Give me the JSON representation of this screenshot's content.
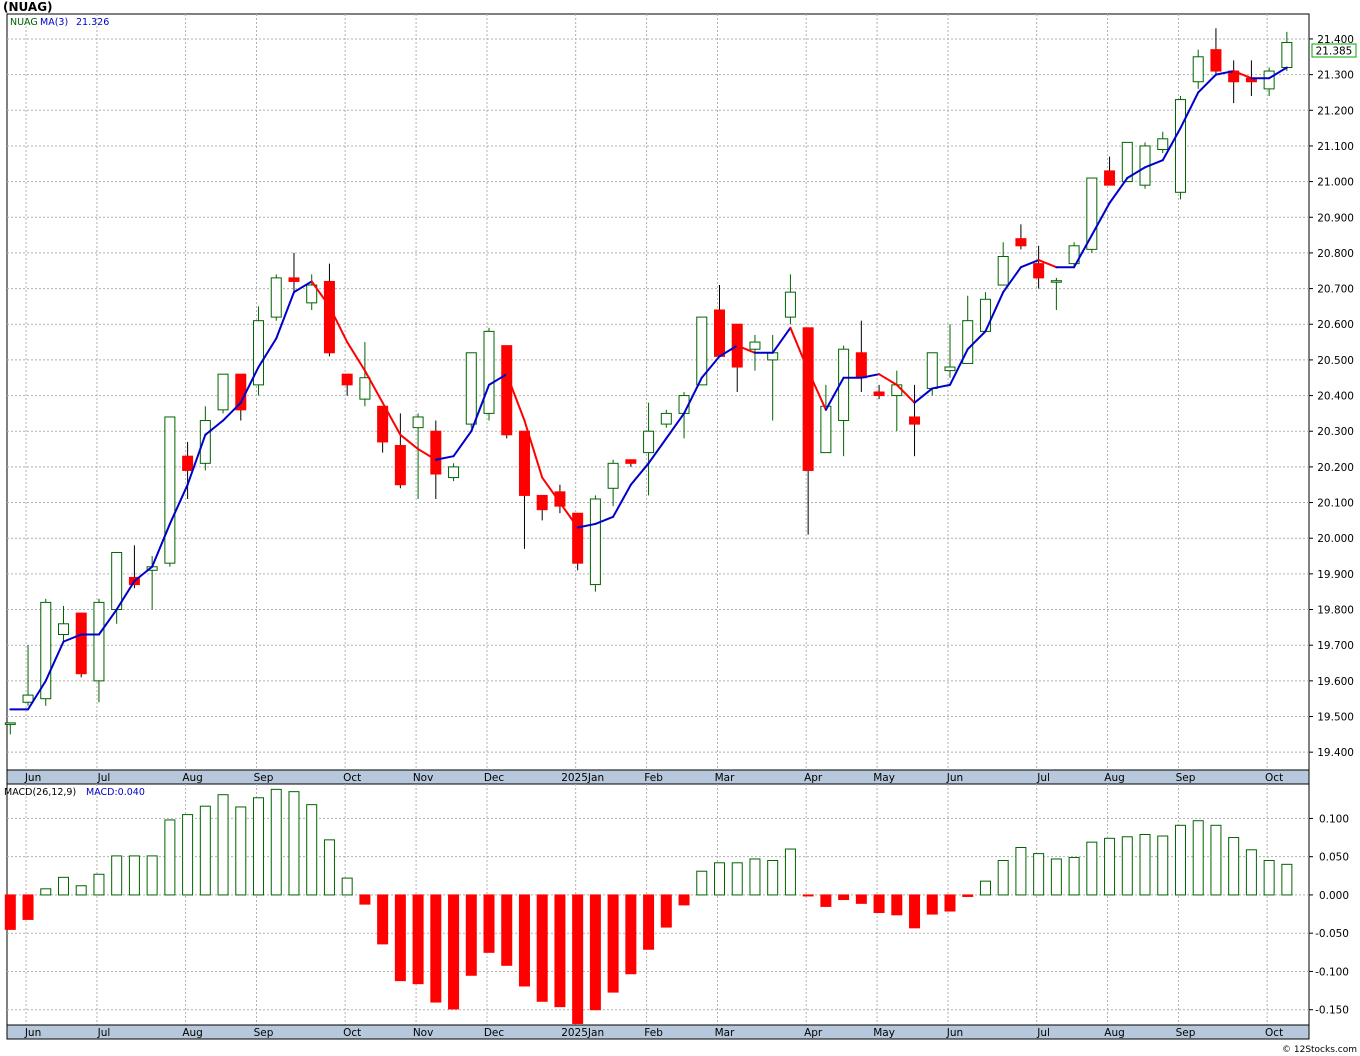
{
  "title": "(NUAG)",
  "footer": "© 12Stocks.com",
  "legend": {
    "price_symbol": "NUAG",
    "ma_label": "MA(3)",
    "ma_value": "21.326",
    "macd_label": "MACD(26,12,9)",
    "macd_value": "MACD:0.040"
  },
  "last_price_label": "21.385",
  "colors": {
    "up_candle": "#006400",
    "down_candle": "#ff0000",
    "ma_up": "#0000cc",
    "ma_down": "#ff0000",
    "grid": "#b0b0b0",
    "axis_band": "#b8c8dc",
    "price_flag": "#00aa00"
  },
  "chart_data": [
    {
      "type": "candlestick",
      "name": "price",
      "ylim": [
        19.35,
        21.47
      ],
      "y_ticks": [
        19.4,
        19.5,
        19.6,
        19.7,
        19.8,
        19.9,
        20.0,
        20.1,
        20.2,
        20.3,
        20.4,
        20.5,
        20.6,
        20.7,
        20.8,
        20.9,
        21.0,
        21.1,
        21.2,
        21.3,
        21.4
      ],
      "y_tick_labels": [
        "19.400",
        "19.500",
        "19.600",
        "19.700",
        "19.800",
        "19.900",
        "20.000",
        "20.100",
        "20.200",
        "20.300",
        "20.400",
        "20.500",
        "20.600",
        "20.700",
        "20.800",
        "20.900",
        "21.000",
        "21.100",
        "21.200",
        "21.300",
        "21.400"
      ],
      "x_labels": [
        {
          "label": "Jun",
          "index": 1
        },
        {
          "label": "Jul",
          "index": 5
        },
        {
          "label": "Aug",
          "index": 10
        },
        {
          "label": "Sep",
          "index": 14
        },
        {
          "label": "Oct",
          "index": 19
        },
        {
          "label": "Nov",
          "index": 23
        },
        {
          "label": "Dec",
          "index": 27
        },
        {
          "label": "2025Jan",
          "index": 32
        },
        {
          "label": "Feb",
          "index": 36
        },
        {
          "label": "Mar",
          "index": 40
        },
        {
          "label": "Apr",
          "index": 45
        },
        {
          "label": "May",
          "index": 49
        },
        {
          "label": "Jun",
          "index": 53
        },
        {
          "label": "Jul",
          "index": 58
        },
        {
          "label": "Aug",
          "index": 62
        },
        {
          "label": "Sep",
          "index": 66
        },
        {
          "label": "Oct",
          "index": 71
        }
      ],
      "candles": [
        [
          19.48,
          19.48,
          19.45,
          19.48
        ],
        [
          19.54,
          19.7,
          19.53,
          19.56
        ],
        [
          19.55,
          19.83,
          19.53,
          19.82
        ],
        [
          19.73,
          19.81,
          19.71,
          19.76
        ],
        [
          19.79,
          19.79,
          19.61,
          19.62
        ],
        [
          19.6,
          19.83,
          19.54,
          19.82
        ],
        [
          19.8,
          19.96,
          19.76,
          19.96
        ],
        [
          19.89,
          19.98,
          19.86,
          19.87
        ],
        [
          19.91,
          19.95,
          19.8,
          19.92
        ],
        [
          19.93,
          20.34,
          19.92,
          20.34
        ],
        [
          20.23,
          20.27,
          20.11,
          20.19
        ],
        [
          20.21,
          20.37,
          20.19,
          20.33
        ],
        [
          20.36,
          20.46,
          20.35,
          20.46
        ],
        [
          20.46,
          20.46,
          20.33,
          20.36
        ],
        [
          20.43,
          20.65,
          20.4,
          20.61
        ],
        [
          20.62,
          20.74,
          20.61,
          20.73
        ],
        [
          20.73,
          20.8,
          20.69,
          20.72
        ],
        [
          20.66,
          20.74,
          20.64,
          20.71
        ],
        [
          20.72,
          20.77,
          20.51,
          20.52
        ],
        [
          20.46,
          20.46,
          20.4,
          20.43
        ],
        [
          20.39,
          20.55,
          20.37,
          20.45
        ],
        [
          20.37,
          20.37,
          20.24,
          20.27
        ],
        [
          20.26,
          20.35,
          20.14,
          20.15
        ],
        [
          20.31,
          20.35,
          20.11,
          20.34
        ],
        [
          20.3,
          20.33,
          20.11,
          20.18
        ],
        [
          20.17,
          20.21,
          20.16,
          20.2
        ],
        [
          20.32,
          20.52,
          20.31,
          20.52
        ],
        [
          20.35,
          20.59,
          20.33,
          20.58
        ],
        [
          20.54,
          20.54,
          20.28,
          20.29
        ],
        [
          20.3,
          20.3,
          19.97,
          20.12
        ],
        [
          20.12,
          20.12,
          20.05,
          20.08
        ],
        [
          20.13,
          20.15,
          20.07,
          20.09
        ],
        [
          20.07,
          20.07,
          19.91,
          19.93
        ],
        [
          19.87,
          20.12,
          19.85,
          20.11
        ],
        [
          20.14,
          20.22,
          20.09,
          20.21
        ],
        [
          20.22,
          20.22,
          20.2,
          20.21
        ],
        [
          20.24,
          20.38,
          20.12,
          20.3
        ],
        [
          20.32,
          20.36,
          20.31,
          20.35
        ],
        [
          20.35,
          20.41,
          20.28,
          20.4
        ],
        [
          20.43,
          20.62,
          20.43,
          20.62
        ],
        [
          20.64,
          20.71,
          20.51,
          20.51
        ],
        [
          20.6,
          20.6,
          20.41,
          20.48
        ],
        [
          20.53,
          20.57,
          20.47,
          20.55
        ],
        [
          20.5,
          20.57,
          20.33,
          20.52
        ],
        [
          20.62,
          20.74,
          20.6,
          20.69
        ],
        [
          20.59,
          20.59,
          20.01,
          20.19
        ],
        [
          20.24,
          20.43,
          20.24,
          20.37
        ],
        [
          20.33,
          20.54,
          20.23,
          20.53
        ],
        [
          20.52,
          20.61,
          20.41,
          20.45
        ],
        [
          20.41,
          20.43,
          20.39,
          20.4
        ],
        [
          20.4,
          20.47,
          20.3,
          20.43
        ],
        [
          20.34,
          20.43,
          20.23,
          20.32
        ],
        [
          20.42,
          20.52,
          20.4,
          20.52
        ],
        [
          20.47,
          20.6,
          20.45,
          20.48
        ],
        [
          20.49,
          20.68,
          20.49,
          20.61
        ],
        [
          20.58,
          20.69,
          20.58,
          20.67
        ],
        [
          20.71,
          20.83,
          20.71,
          20.79
        ],
        [
          20.84,
          20.88,
          20.81,
          20.82
        ],
        [
          20.77,
          20.82,
          20.7,
          20.73
        ],
        [
          20.72,
          20.73,
          20.64,
          20.72
        ],
        [
          20.77,
          20.83,
          20.76,
          20.82
        ],
        [
          20.81,
          21.01,
          20.8,
          21.01
        ],
        [
          21.03,
          21.07,
          20.99,
          20.99
        ],
        [
          21.0,
          21.11,
          21.0,
          21.11
        ],
        [
          20.99,
          21.11,
          20.98,
          21.1
        ],
        [
          21.09,
          21.14,
          21.08,
          21.12
        ],
        [
          20.97,
          21.24,
          20.95,
          21.23
        ],
        [
          21.28,
          21.37,
          21.26,
          21.35
        ],
        [
          21.37,
          21.43,
          21.3,
          21.31
        ],
        [
          21.31,
          21.34,
          21.22,
          21.28
        ],
        [
          21.29,
          21.34,
          21.24,
          21.28
        ],
        [
          21.26,
          21.32,
          21.24,
          21.31
        ],
        [
          21.32,
          21.42,
          21.31,
          21.39
        ]
      ],
      "ma": [
        19.52,
        19.52,
        19.6,
        19.71,
        19.73,
        19.73,
        19.8,
        19.88,
        19.92,
        20.04,
        20.15,
        20.29,
        20.33,
        20.38,
        20.48,
        20.56,
        20.69,
        20.72,
        20.65,
        20.55,
        20.47,
        20.38,
        20.29,
        20.25,
        20.22,
        20.23,
        20.3,
        20.43,
        20.46,
        20.33,
        20.17,
        20.1,
        20.03,
        20.04,
        20.06,
        20.15,
        20.21,
        20.28,
        20.35,
        20.45,
        20.51,
        20.54,
        20.52,
        20.52,
        20.59,
        20.47,
        20.36,
        20.45,
        20.45,
        20.46,
        20.43,
        20.38,
        20.42,
        20.43,
        20.53,
        20.58,
        20.69,
        20.76,
        20.78,
        20.76,
        20.76,
        20.85,
        20.94,
        21.01,
        21.04,
        21.06,
        21.15,
        21.25,
        21.3,
        21.31,
        21.29,
        21.29,
        21.32
      ]
    },
    {
      "type": "bar",
      "name": "MACD",
      "ylim": [
        -0.17,
        0.145
      ],
      "y_ticks": [
        0.1,
        0.05,
        0.0,
        -0.05,
        -0.1,
        -0.15
      ],
      "y_tick_labels": [
        "0.100",
        "0.050",
        "0.000",
        "-0.050",
        "-0.100",
        "-0.150"
      ],
      "values": [
        -0.045,
        -0.032,
        0.008,
        0.023,
        0.012,
        0.027,
        0.051,
        0.051,
        0.051,
        0.098,
        0.105,
        0.116,
        0.131,
        0.115,
        0.127,
        0.138,
        0.135,
        0.118,
        0.072,
        0.022,
        -0.012,
        -0.064,
        -0.112,
        -0.116,
        -0.14,
        -0.149,
        -0.105,
        -0.075,
        -0.092,
        -0.119,
        -0.139,
        -0.146,
        -0.168,
        -0.15,
        -0.127,
        -0.103,
        -0.071,
        -0.042,
        -0.013,
        0.031,
        0.042,
        0.042,
        0.047,
        0.045,
        0.06,
        -0.001,
        -0.015,
        -0.006,
        -0.011,
        -0.023,
        -0.026,
        -0.043,
        -0.025,
        -0.021,
        -0.002,
        0.018,
        0.045,
        0.062,
        0.054,
        0.047,
        0.049,
        0.069,
        0.074,
        0.076,
        0.079,
        0.077,
        0.091,
        0.097,
        0.091,
        0.075,
        0.059,
        0.045,
        0.04
      ]
    }
  ]
}
